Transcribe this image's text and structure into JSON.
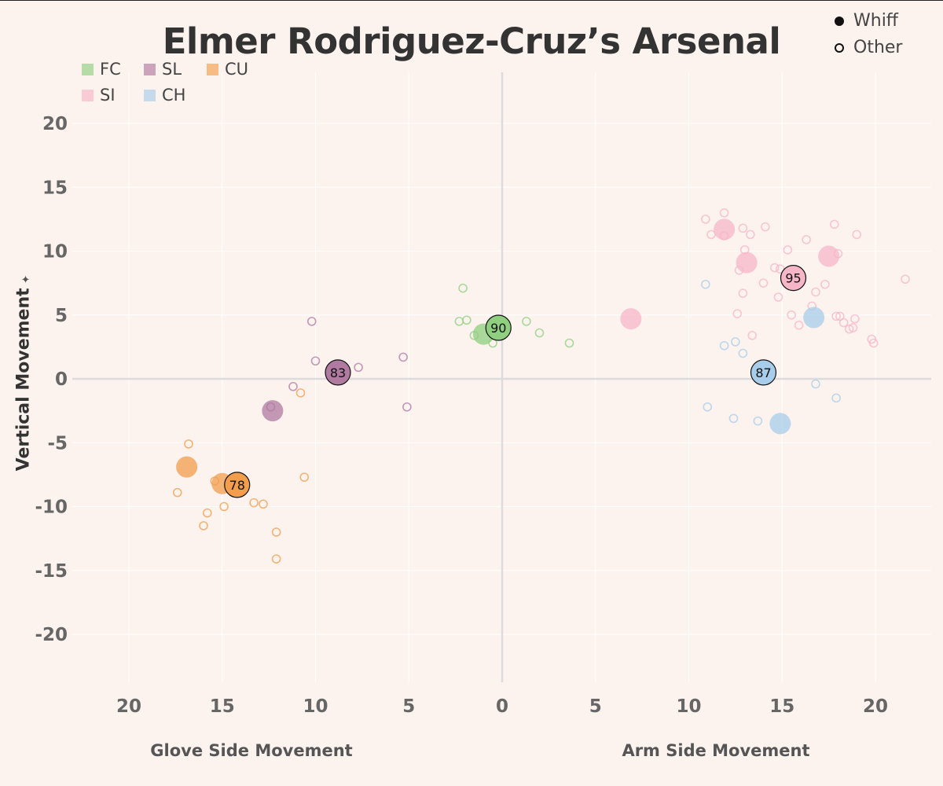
{
  "chart_data": {
    "type": "scatter",
    "title": "Elmer Rodriguez-Cruz’s Arsenal",
    "ylabel": "Vertical Movement",
    "xlabel_left": "Glove Side Movement",
    "xlabel_right": "Arm Side Movement",
    "xlim": [
      -23,
      23
    ],
    "ylim": [
      -23.5,
      23.5
    ],
    "x_ticks": [
      -20,
      -15,
      -10,
      -5,
      0,
      5,
      10,
      15,
      20
    ],
    "x_tick_labels": [
      "20",
      "15",
      "10",
      "5",
      "0",
      "5",
      "10",
      "15",
      "20"
    ],
    "y_ticks": [
      20,
      15,
      10,
      5,
      0,
      -5,
      -10,
      -15,
      -20
    ],
    "y_tick_labels": [
      "20",
      "15",
      "10",
      "5",
      "0",
      "-5",
      "-10",
      "-15",
      "-20"
    ],
    "shape_legend": [
      {
        "name": "Whiff",
        "filled": true
      },
      {
        "name": "Other",
        "filled": false
      }
    ],
    "series": [
      {
        "name": "FC",
        "color": "#8fcf7f",
        "average": {
          "x": -0.2,
          "y": 4.0,
          "label": "90"
        },
        "whiffs": [
          [
            -1.0,
            3.5
          ]
        ],
        "others": [
          [
            -2.1,
            7.1
          ],
          [
            -2.3,
            4.5
          ],
          [
            -1.9,
            4.6
          ],
          [
            -1.5,
            3.4
          ],
          [
            -0.5,
            2.8
          ],
          [
            1.3,
            4.5
          ],
          [
            2.0,
            3.6
          ],
          [
            3.6,
            2.8
          ]
        ]
      },
      {
        "name": "SL",
        "color": "#b07aa1",
        "average": {
          "x": -8.8,
          "y": 0.5,
          "label": "83"
        },
        "whiffs": [
          [
            -12.3,
            -2.5
          ]
        ],
        "others": [
          [
            -10.2,
            4.5
          ],
          [
            -10.0,
            1.4
          ],
          [
            -7.7,
            0.9
          ],
          [
            -5.3,
            1.7
          ],
          [
            -5.1,
            -2.2
          ],
          [
            -11.2,
            -0.6
          ],
          [
            -12.4,
            -2.2
          ]
        ]
      },
      {
        "name": "CU",
        "color": "#f29e4c",
        "average": {
          "x": -14.2,
          "y": -8.3,
          "label": "78"
        },
        "whiffs": [
          [
            -16.9,
            -6.9
          ],
          [
            -15.0,
            -8.2
          ]
        ],
        "others": [
          [
            -16.8,
            -5.1
          ],
          [
            -17.4,
            -8.9
          ],
          [
            -15.4,
            -8.0
          ],
          [
            -15.8,
            -10.5
          ],
          [
            -16.0,
            -11.5
          ],
          [
            -14.9,
            -10.0
          ],
          [
            -13.3,
            -9.7
          ],
          [
            -12.8,
            -9.8
          ],
          [
            -12.1,
            -12.0
          ],
          [
            -12.1,
            -14.1
          ],
          [
            -10.6,
            -7.7
          ],
          [
            -10.8,
            -1.1
          ]
        ]
      },
      {
        "name": "SI",
        "color": "#f7b6c8",
        "average": {
          "x": 15.6,
          "y": 7.9,
          "label": "95"
        },
        "whiffs": [
          [
            6.9,
            4.7
          ],
          [
            11.9,
            11.7
          ],
          [
            13.1,
            9.1
          ],
          [
            17.5,
            9.6
          ]
        ],
        "others": [
          [
            10.9,
            12.5
          ],
          [
            11.2,
            11.3
          ],
          [
            11.9,
            11.2
          ],
          [
            11.9,
            13.0
          ],
          [
            12.9,
            11.8
          ],
          [
            13.3,
            11.3
          ],
          [
            14.1,
            11.9
          ],
          [
            12.7,
            8.5
          ],
          [
            13.0,
            10.1
          ],
          [
            14.6,
            8.7
          ],
          [
            14.0,
            7.5
          ],
          [
            12.9,
            6.7
          ],
          [
            12.6,
            5.1
          ],
          [
            13.4,
            3.4
          ],
          [
            14.8,
            6.4
          ],
          [
            15.5,
            5.0
          ],
          [
            15.9,
            4.2
          ],
          [
            16.3,
            10.9
          ],
          [
            16.6,
            5.7
          ],
          [
            16.8,
            6.8
          ],
          [
            17.3,
            7.4
          ],
          [
            17.8,
            12.1
          ],
          [
            18.0,
            9.8
          ],
          [
            17.9,
            4.9
          ],
          [
            18.1,
            4.9
          ],
          [
            18.3,
            4.4
          ],
          [
            18.6,
            3.9
          ],
          [
            18.8,
            4.0
          ],
          [
            18.9,
            4.7
          ],
          [
            19.0,
            11.3
          ],
          [
            19.8,
            3.1
          ],
          [
            19.9,
            2.8
          ],
          [
            21.6,
            7.8
          ],
          [
            15.3,
            10.1
          ],
          [
            14.9,
            8.6
          ]
        ]
      },
      {
        "name": "CH",
        "color": "#a7cdea",
        "average": {
          "x": 14.0,
          "y": 0.5,
          "label": "87"
        },
        "whiffs": [
          [
            16.7,
            4.8
          ],
          [
            14.9,
            -3.5
          ]
        ],
        "others": [
          [
            10.9,
            7.4
          ],
          [
            11.9,
            2.6
          ],
          [
            12.5,
            2.9
          ],
          [
            12.9,
            2.0
          ],
          [
            11.0,
            -2.2
          ],
          [
            12.4,
            -3.1
          ],
          [
            13.7,
            -3.3
          ],
          [
            16.8,
            -0.4
          ],
          [
            17.9,
            -1.5
          ]
        ]
      }
    ]
  }
}
